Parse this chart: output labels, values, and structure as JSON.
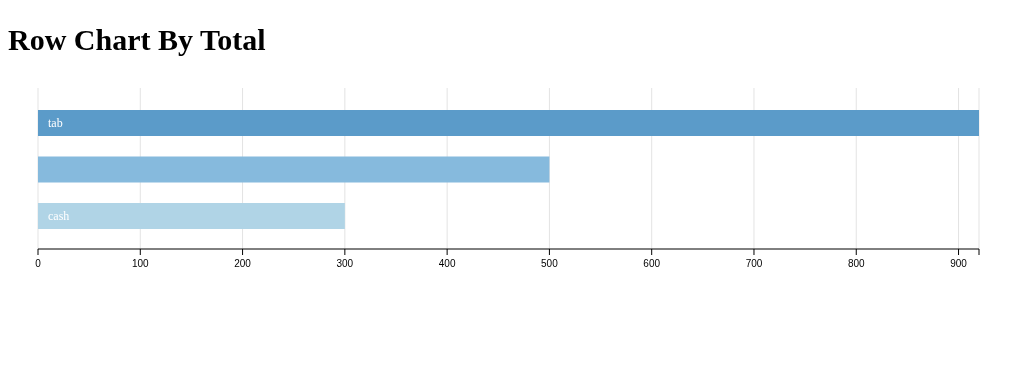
{
  "chart_data": {
    "type": "bar",
    "orientation": "horizontal",
    "title": "Row Chart By Total",
    "categories": [
      "tab",
      null,
      "cash"
    ],
    "values": [
      920,
      500,
      300
    ],
    "colors": [
      "#5b9bc9",
      "#86badd",
      "#b0d4e6"
    ],
    "xlim": [
      0,
      920
    ],
    "xticks": [
      0,
      100,
      200,
      300,
      400,
      500,
      600,
      700,
      800,
      900,
      {
        "value": 920,
        "label": null
      }
    ],
    "grid": "x"
  }
}
